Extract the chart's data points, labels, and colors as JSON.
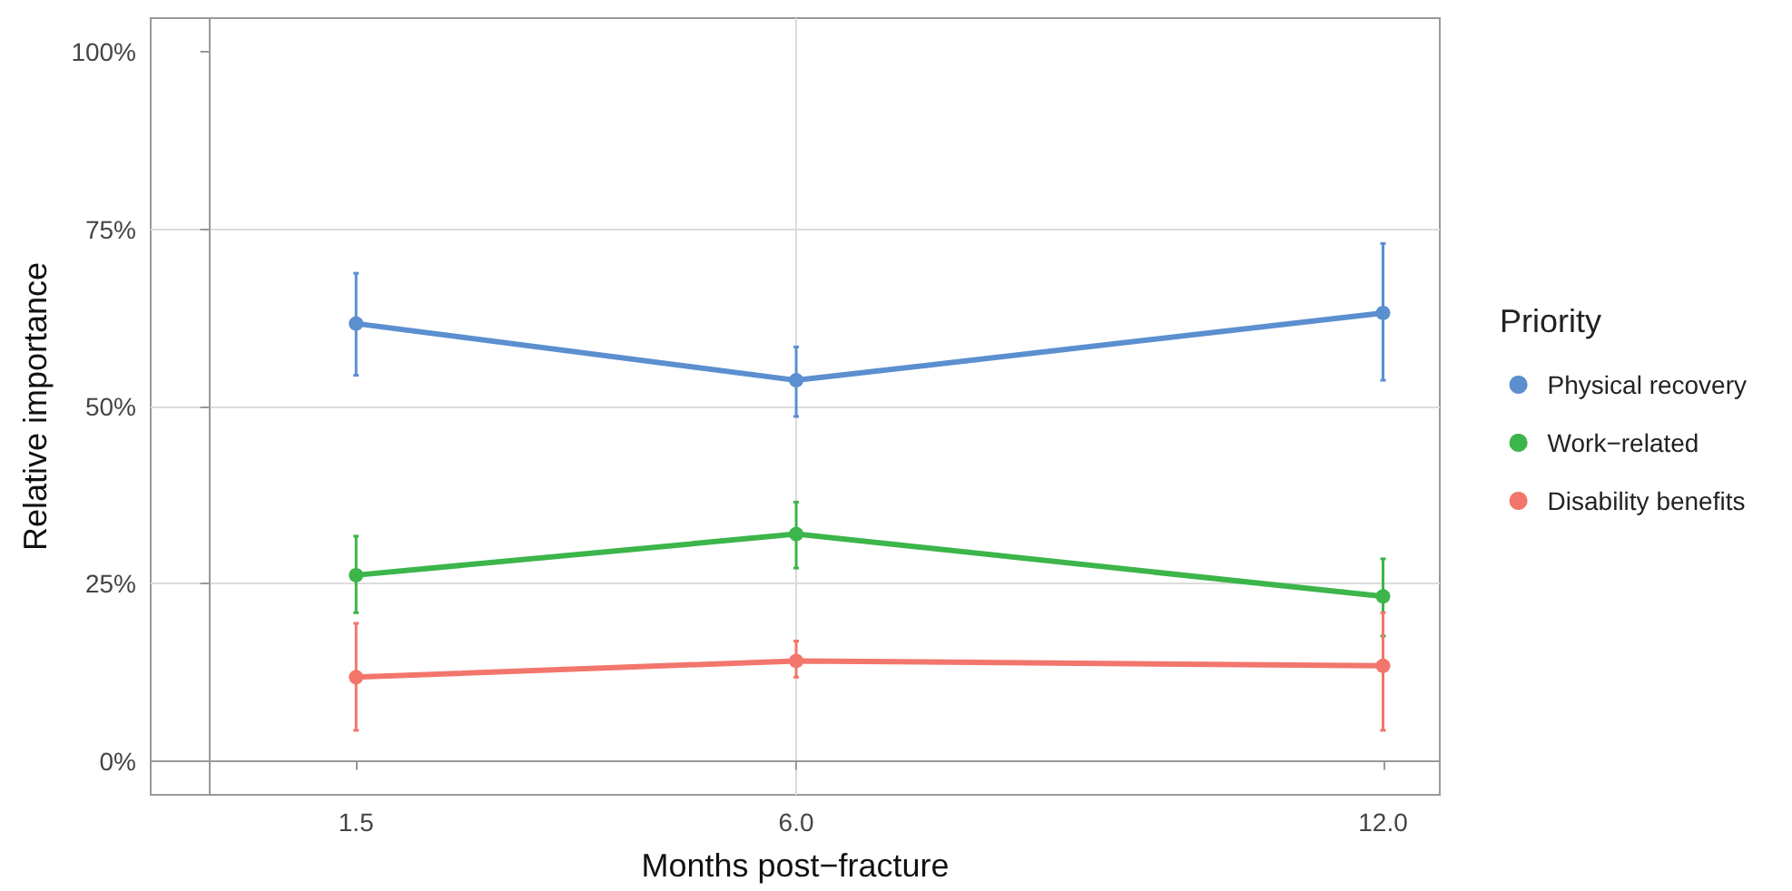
{
  "chart_data": {
    "type": "line",
    "xlabel": "Months post−fracture",
    "ylabel": "Relative importance",
    "legend_title": "Priority",
    "x": [
      1.5,
      6.0,
      12.0
    ],
    "xlim": [
      -0.6,
      12.58
    ],
    "xticks": [
      {
        "value": 1.5,
        "label": "1.5"
      },
      {
        "value": 6,
        "label": "6.0"
      },
      {
        "value": 12,
        "label": "12.0"
      }
    ],
    "ylim": [
      -4.8,
      104.8
    ],
    "yticks": [
      {
        "value": 0,
        "label": "0%"
      },
      {
        "value": 25,
        "label": "25%"
      },
      {
        "value": 50,
        "label": "50%"
      },
      {
        "value": 75,
        "label": "75%"
      },
      {
        "value": 100,
        "label": "100%"
      }
    ],
    "series": [
      {
        "name": "Physical recovery",
        "color": "#5b8fd0",
        "values": [
          61.7,
          53.7,
          63.2
        ],
        "errors": [
          [
            54.4,
            68.8
          ],
          [
            48.6,
            58.4
          ],
          [
            53.7,
            73.0
          ]
        ]
      },
      {
        "name": "Work−related",
        "color": "#3cb54a",
        "values": [
          26.2,
          32.0,
          23.2
        ],
        "errors": [
          [
            20.9,
            31.7
          ],
          [
            27.2,
            36.5
          ],
          [
            17.6,
            28.5
          ]
        ]
      },
      {
        "name": "Disability benefits",
        "color": "#f2766c",
        "values": [
          11.8,
          14.1,
          13.4
        ],
        "errors": [
          [
            4.3,
            19.4
          ],
          [
            11.8,
            16.9
          ],
          [
            4.3,
            20.9
          ]
        ]
      }
    ],
    "grid": true,
    "legend": "right",
    "marker": "circle",
    "line_style": "solid"
  }
}
